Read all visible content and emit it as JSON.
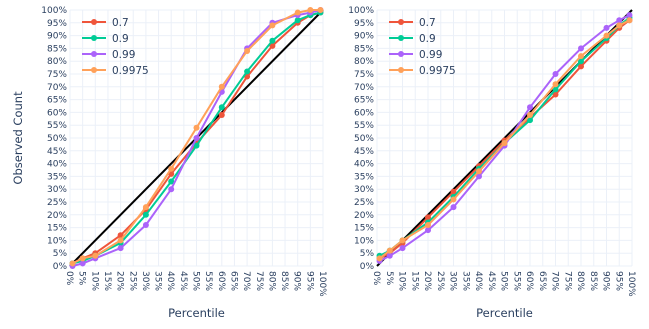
{
  "chart_data": [
    {
      "type": "line",
      "panel": "left",
      "xlabel": "Percentile",
      "ylabel": "Observed Count",
      "x": [
        1,
        5,
        10,
        20,
        30,
        40,
        50,
        60,
        70,
        80,
        90,
        95,
        99
      ],
      "xlim": [
        0,
        100
      ],
      "ylim": [
        0,
        100
      ],
      "x_ticks": [
        "0%",
        "5%",
        "10%",
        "15%",
        "20%",
        "25%",
        "30%",
        "35%",
        "40%",
        "45%",
        "50%",
        "55%",
        "60%",
        "65%",
        "70%",
        "75%",
        "80%",
        "85%",
        "90%",
        "95%",
        "100%"
      ],
      "y_ticks": [
        "0%",
        "5%",
        "10%",
        "15%",
        "20%",
        "25%",
        "30%",
        "35%",
        "40%",
        "45%",
        "50%",
        "55%",
        "60%",
        "65%",
        "70%",
        "75%",
        "80%",
        "85%",
        "90%",
        "95%",
        "100%"
      ],
      "grid": true,
      "legend_position": "top-left",
      "reference_line": {
        "from": [
          0,
          0
        ],
        "to": [
          100,
          100
        ],
        "color": "#000000"
      },
      "series": [
        {
          "name": "0.7",
          "color": "#EF553B",
          "values": [
            1,
            3,
            5,
            12,
            22,
            36,
            48,
            59,
            74,
            86,
            95,
            98,
            99
          ]
        },
        {
          "name": "0.9",
          "color": "#00CC96",
          "values": [
            1,
            2,
            4,
            9,
            20,
            33,
            47,
            62,
            76,
            88,
            96,
            98,
            99
          ]
        },
        {
          "name": "0.99",
          "color": "#AB63FA",
          "values": [
            0,
            1,
            3,
            7,
            16,
            30,
            50,
            68,
            85,
            95,
            98,
            99,
            100
          ]
        },
        {
          "name": "0.9975",
          "color": "#FFA15A",
          "values": [
            1,
            3,
            4,
            10,
            23,
            38,
            54,
            70,
            84,
            94,
            99,
            100,
            100
          ]
        }
      ]
    },
    {
      "type": "line",
      "panel": "right",
      "xlabel": "Percentile",
      "ylabel": "",
      "x": [
        1,
        5,
        10,
        20,
        30,
        40,
        50,
        60,
        70,
        80,
        90,
        95,
        99
      ],
      "xlim": [
        0,
        100
      ],
      "ylim": [
        0,
        100
      ],
      "x_ticks": [
        "0%",
        "5%",
        "10%",
        "15%",
        "20%",
        "25%",
        "30%",
        "35%",
        "40%",
        "45%",
        "50%",
        "55%",
        "60%",
        "65%",
        "70%",
        "75%",
        "80%",
        "85%",
        "90%",
        "95%",
        "100%"
      ],
      "y_ticks": [
        "0%",
        "5%",
        "10%",
        "15%",
        "20%",
        "25%",
        "30%",
        "35%",
        "40%",
        "45%",
        "50%",
        "55%",
        "60%",
        "65%",
        "70%",
        "75%",
        "80%",
        "85%",
        "90%",
        "95%",
        "100%"
      ],
      "grid": true,
      "legend_position": "top-left",
      "reference_line": {
        "from": [
          0,
          0
        ],
        "to": [
          100,
          100
        ],
        "color": "#000000"
      },
      "series": [
        {
          "name": "0.7",
          "color": "#EF553B",
          "values": [
            3,
            5,
            9,
            19,
            29,
            39,
            49,
            58,
            67,
            78,
            88,
            93,
            96
          ]
        },
        {
          "name": "0.9",
          "color": "#00CC96",
          "values": [
            4,
            6,
            10,
            17,
            27,
            38,
            48,
            57,
            69,
            80,
            89,
            94,
            97
          ]
        },
        {
          "name": "0.99",
          "color": "#AB63FA",
          "values": [
            2,
            4,
            7,
            14,
            23,
            35,
            47,
            62,
            75,
            85,
            93,
            96,
            98
          ]
        },
        {
          "name": "0.9975",
          "color": "#FFA15A",
          "values": [
            3,
            6,
            10,
            16,
            26,
            37,
            48,
            59,
            71,
            82,
            90,
            94,
            96
          ]
        }
      ]
    }
  ]
}
